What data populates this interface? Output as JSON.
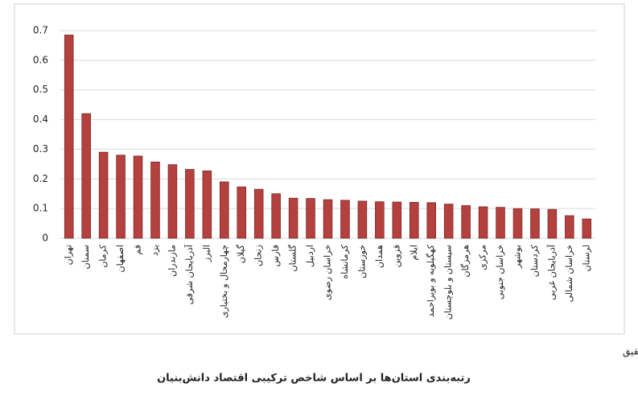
{
  "chart_data": {
    "type": "bar",
    "title": "رتبه‌بندی استان‌ها بر اساس شاخص ترکیبی اقتصاد دانش‌بنیان",
    "source": "مأخذ: یافته‌های تحقیق",
    "categories": [
      "تهران",
      "سمنان",
      "کرمان",
      "اصفهان",
      "قم",
      "یزد",
      "مازندران",
      "آذربایجان شرقی",
      "البرز",
      "چهارمحال و بختیاری",
      "گیلان",
      "زنجان",
      "فارس",
      "گلستان",
      "اردبیل",
      "خراسان رضوی",
      "کرمانشاه",
      "خوزستان",
      "همدان",
      "قزوین",
      "ایلام",
      "کهگیلویه و بویراحمد",
      "سیستان و بلوچستان",
      "هرمزگان",
      "مرکزی",
      "خراسان جنوبی",
      "بوشهر",
      "کردستان",
      "آذربایجان غربی",
      "خراسان شمالی",
      "لرستان"
    ],
    "values": [
      0.685,
      0.42,
      0.29,
      0.28,
      0.277,
      0.257,
      0.248,
      0.232,
      0.227,
      0.19,
      0.173,
      0.165,
      0.15,
      0.135,
      0.134,
      0.13,
      0.128,
      0.125,
      0.123,
      0.122,
      0.121,
      0.12,
      0.115,
      0.11,
      0.106,
      0.104,
      0.1,
      0.099,
      0.097,
      0.076,
      0.065
    ],
    "color": "#b5413f",
    "ylim": [
      0,
      0.7
    ],
    "yticks": [
      0,
      0.1,
      0.2,
      0.3,
      0.4,
      0.5,
      0.6,
      0.7
    ],
    "grid": true
  }
}
